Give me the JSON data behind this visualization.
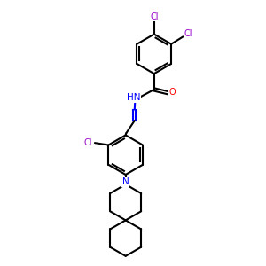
{
  "background_color": "#ffffff",
  "bond_color": "#000000",
  "cl_color": "#9900cc",
  "o_color": "#ff0000",
  "n_color": "#0000ff",
  "line_width": 1.5,
  "figsize": [
    3.0,
    3.0
  ],
  "dpi": 100,
  "xlim": [
    0,
    10
  ],
  "ylim": [
    0,
    10
  ]
}
